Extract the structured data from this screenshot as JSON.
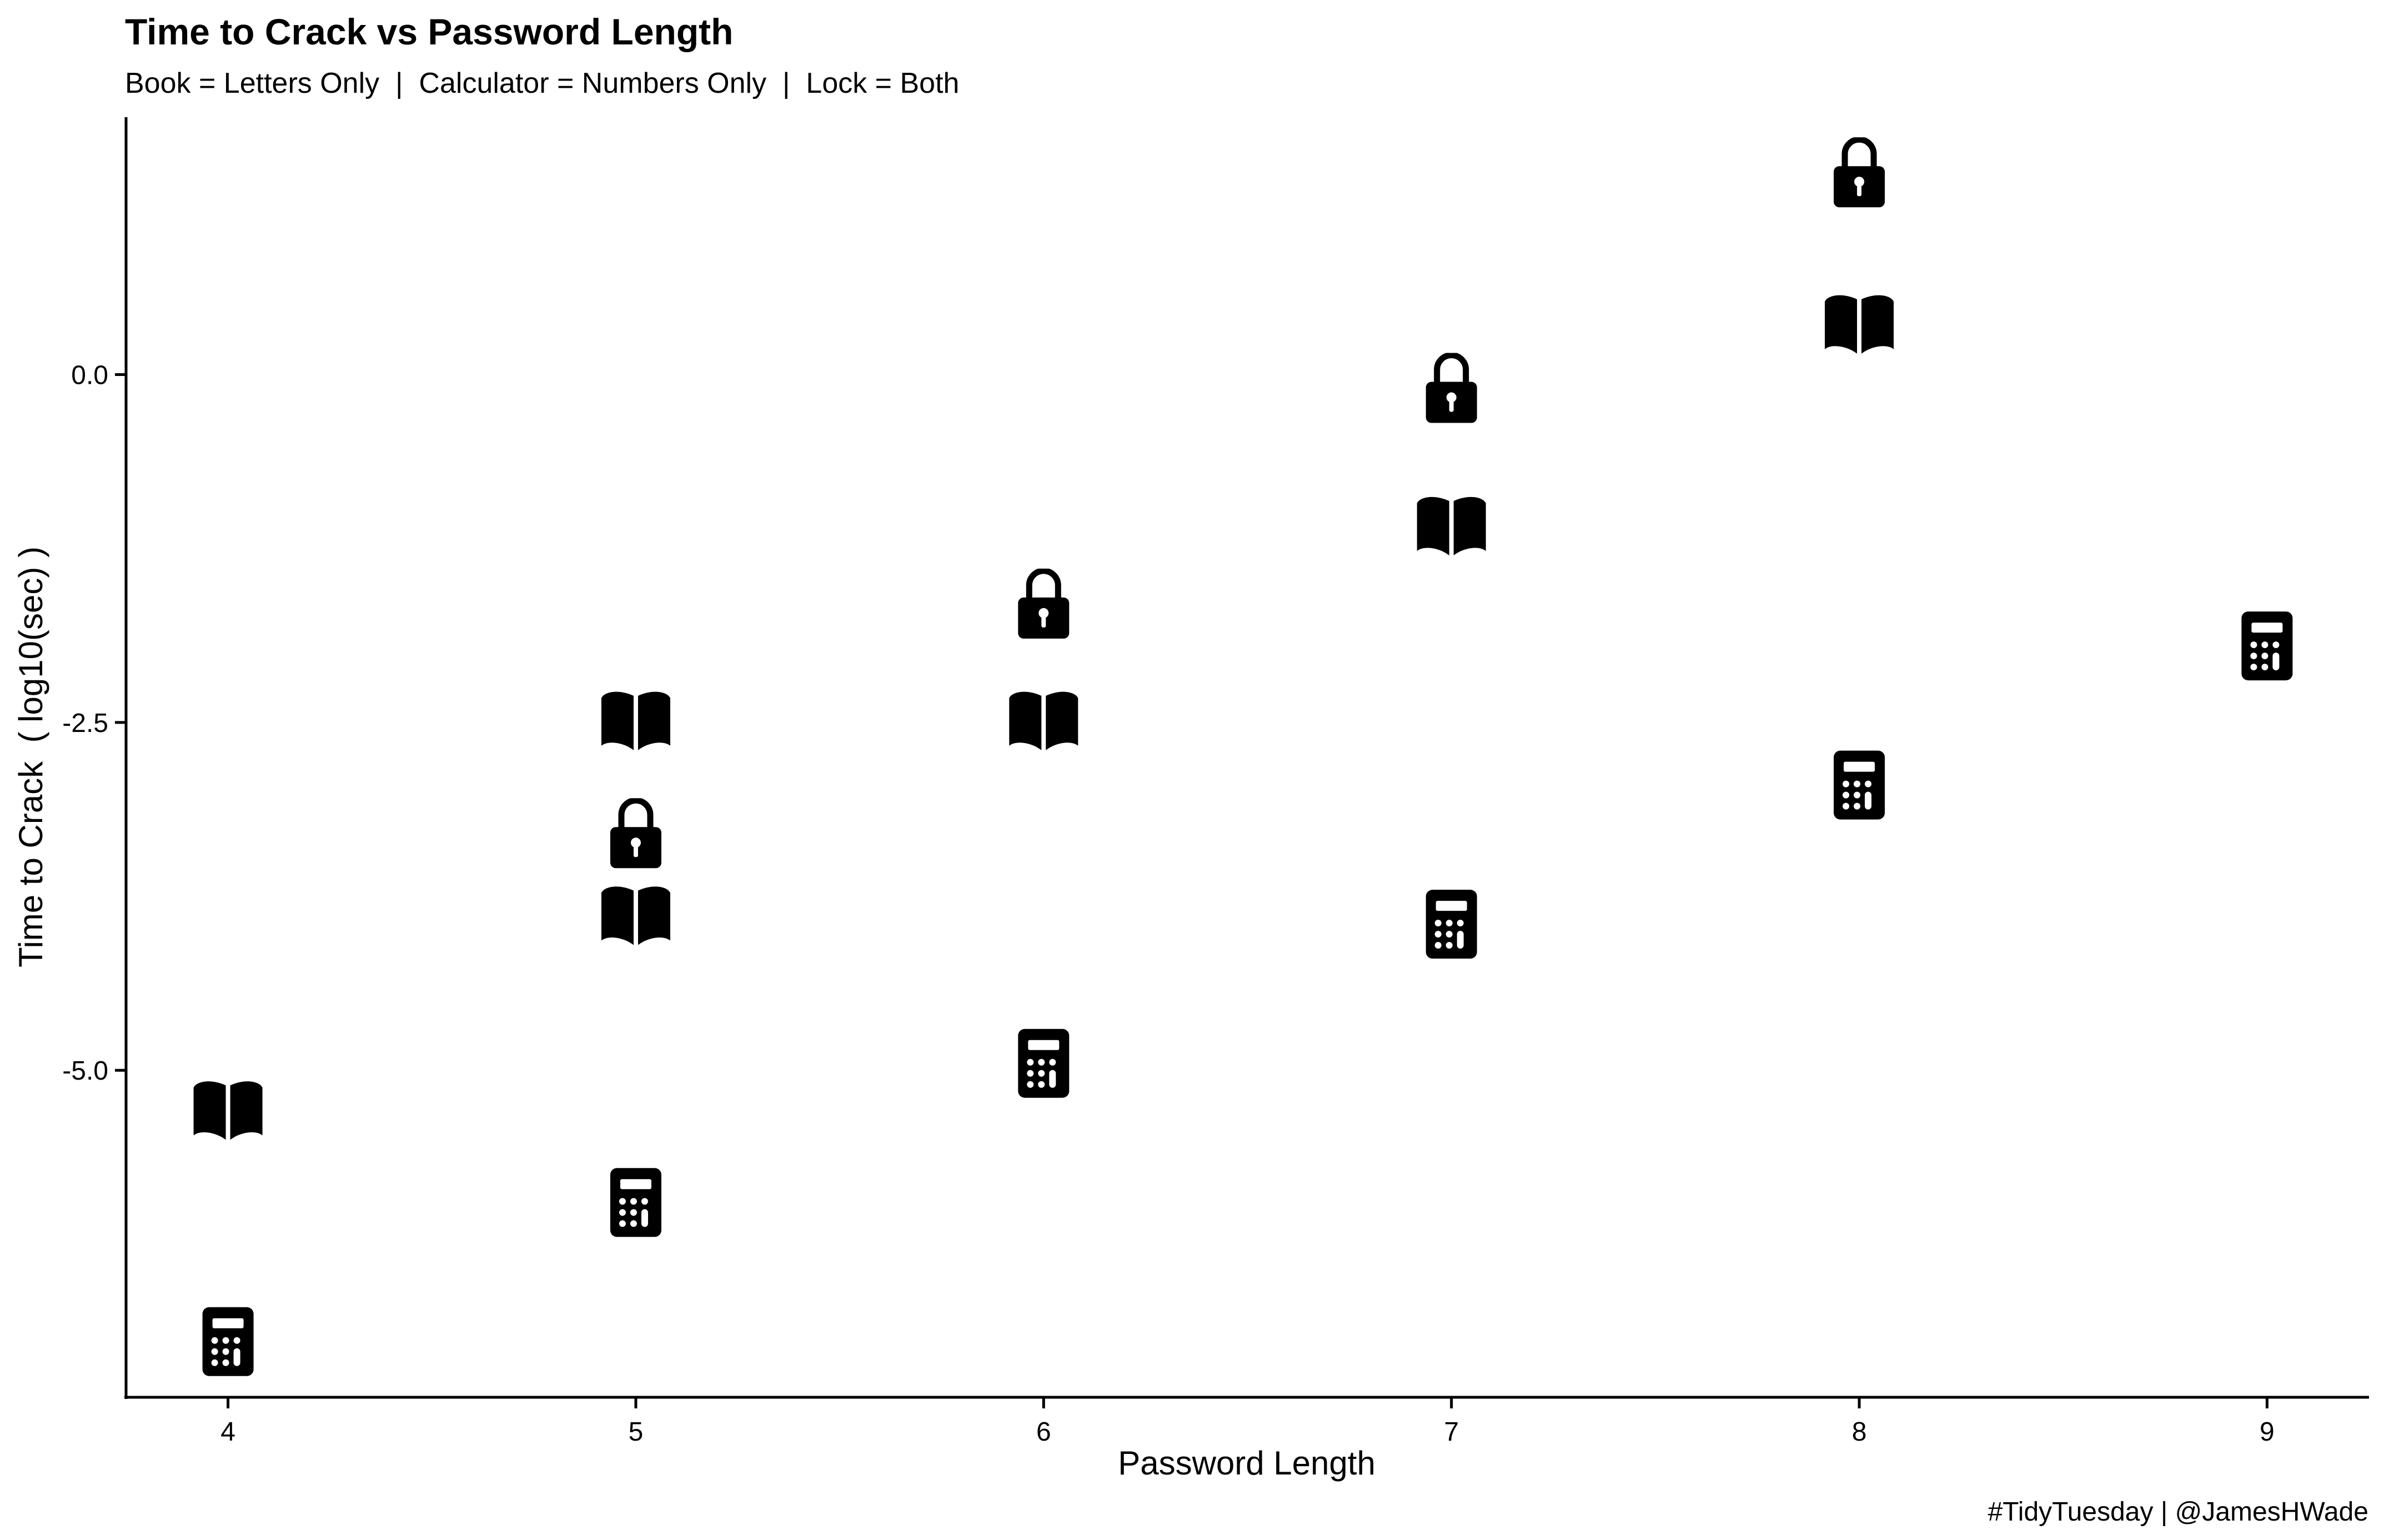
{
  "chart_data": {
    "type": "scatter",
    "title": "Time to Crack vs Password Length",
    "subtitle": "Book = Letters Only  |  Calculator = Numbers Only  |  Lock = Both",
    "xlabel": "Password Length",
    "ylabel": "Time to Crack  ( log10(sec) )",
    "caption": "#TidyTuesday | @JamesHWade",
    "xlim": [
      3.75,
      9.25
    ],
    "ylim": [
      -7.35,
      1.85
    ],
    "x_ticks": [
      4,
      5,
      6,
      7,
      8,
      9
    ],
    "y_ticks": [
      0,
      -2.5,
      -5
    ],
    "y_tick_labels": [
      "0.0",
      "-2.5",
      "-5.0"
    ],
    "grid": false,
    "series": [
      {
        "name": "Book",
        "icon": "book-icon",
        "points": [
          {
            "x": 4,
            "y": -5.3
          },
          {
            "x": 5,
            "y": -2.5
          },
          {
            "x": 5,
            "y": -3.9
          },
          {
            "x": 6,
            "y": -2.5
          },
          {
            "x": 7,
            "y": -1.1
          },
          {
            "x": 8,
            "y": 0.35
          }
        ]
      },
      {
        "name": "Calculator",
        "icon": "calculator-icon",
        "points": [
          {
            "x": 4,
            "y": -6.95
          },
          {
            "x": 5,
            "y": -5.95
          },
          {
            "x": 6,
            "y": -4.95
          },
          {
            "x": 7,
            "y": -3.95
          },
          {
            "x": 8,
            "y": -2.95
          },
          {
            "x": 9,
            "y": -1.95
          }
        ]
      },
      {
        "name": "Lock",
        "icon": "lock-icon",
        "points": [
          {
            "x": 5,
            "y": -3.3
          },
          {
            "x": 6,
            "y": -1.65
          },
          {
            "x": 7,
            "y": -0.1
          },
          {
            "x": 8,
            "y": 1.45
          }
        ]
      }
    ]
  }
}
